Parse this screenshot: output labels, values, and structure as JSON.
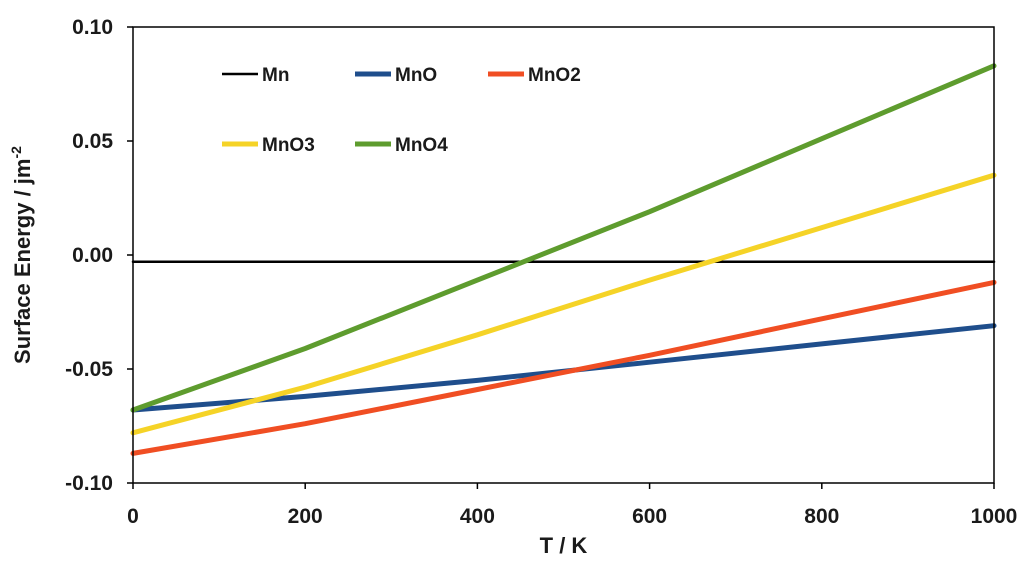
{
  "chart_data": {
    "type": "line",
    "xlabel": "T / K",
    "ylabel_main": "Surface Energy / jm",
    "ylabel_sup": "-2",
    "xlim": [
      0,
      1000
    ],
    "ylim": [
      -0.1,
      0.1
    ],
    "x_ticks": [
      0,
      200,
      400,
      600,
      800,
      1000
    ],
    "x_tick_labels": [
      "0",
      "200",
      "400",
      "600",
      "800",
      "1000"
    ],
    "y_ticks": [
      -0.1,
      -0.05,
      0.0,
      0.05,
      0.1
    ],
    "y_tick_labels": [
      "-0.10",
      "-0.05",
      "0.00",
      "0.05",
      "0.10"
    ],
    "grid": false,
    "legend_position": "top-left",
    "series": [
      {
        "name": "Mn",
        "color": "#000000",
        "x": [
          0,
          1000
        ],
        "y": [
          -0.003,
          -0.003
        ]
      },
      {
        "name": "MnO",
        "color": "#1f4e8c",
        "x": [
          0,
          200,
          400,
          600,
          800,
          1000
        ],
        "y": [
          -0.068,
          -0.062,
          -0.055,
          -0.047,
          -0.039,
          -0.031
        ]
      },
      {
        "name": "MnO2",
        "color": "#f04e23",
        "x": [
          0,
          200,
          400,
          600,
          800,
          1000
        ],
        "y": [
          -0.087,
          -0.074,
          -0.059,
          -0.044,
          -0.028,
          -0.012
        ]
      },
      {
        "name": "MnO3",
        "color": "#f5d327",
        "x": [
          0,
          200,
          400,
          600,
          800,
          1000
        ],
        "y": [
          -0.078,
          -0.058,
          -0.035,
          -0.011,
          0.012,
          0.035
        ]
      },
      {
        "name": "MnO4",
        "color": "#5e9c2e",
        "x": [
          0,
          200,
          400,
          600,
          800,
          1000
        ],
        "y": [
          -0.068,
          -0.041,
          -0.011,
          0.019,
          0.051,
          0.083
        ]
      }
    ]
  }
}
